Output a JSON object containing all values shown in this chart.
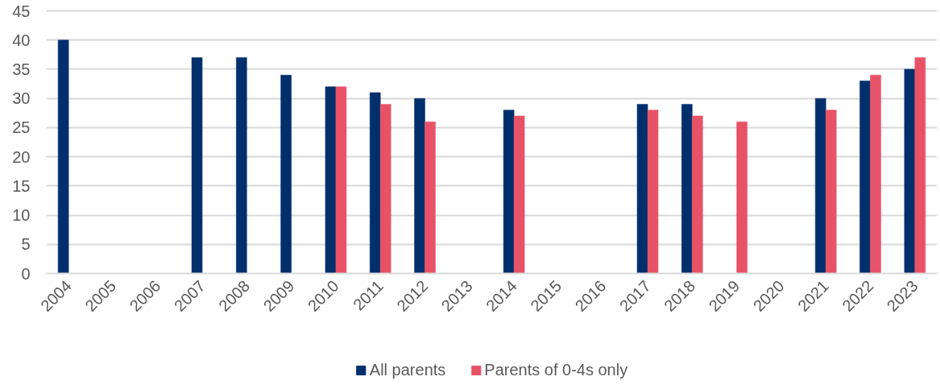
{
  "chart_data": {
    "type": "bar",
    "categories": [
      "2004",
      "2005",
      "2006",
      "2007",
      "2008",
      "2009",
      "2010",
      "2011",
      "2012",
      "2013",
      "2014",
      "2015",
      "2016",
      "2017",
      "2018",
      "2019",
      "2020",
      "2021",
      "2022",
      "2023"
    ],
    "series": [
      {
        "name": "All parents",
        "color": "#002f6c",
        "values": [
          40,
          null,
          null,
          37,
          37,
          34,
          32,
          31,
          30,
          null,
          28,
          null,
          null,
          29,
          29,
          null,
          null,
          30,
          33,
          35
        ]
      },
      {
        "name": "Parents of 0-4s only",
        "color": "#e85266",
        "values": [
          null,
          null,
          null,
          null,
          null,
          null,
          32,
          29,
          26,
          null,
          27,
          null,
          null,
          28,
          27,
          26,
          null,
          28,
          34,
          37
        ]
      }
    ],
    "ylim": [
      0,
      45
    ],
    "yticks": [
      0,
      5,
      10,
      15,
      20,
      25,
      30,
      35,
      40,
      45
    ],
    "grid": "y",
    "legend": "bottom"
  }
}
